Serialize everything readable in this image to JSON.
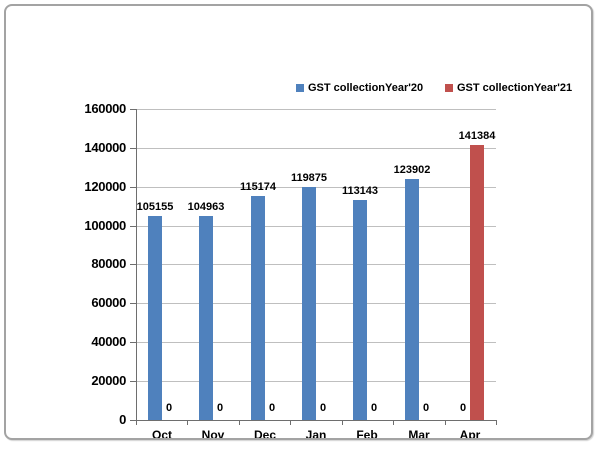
{
  "chart_data": {
    "type": "bar",
    "title": "",
    "xlabel": "",
    "ylabel": "",
    "categories": [
      "Oct",
      "Nov",
      "Dec",
      "Jan",
      "Feb",
      "Mar",
      "Apr"
    ],
    "series": [
      {
        "name": "GST collectionYear'20",
        "color": "#4f81bd",
        "values": [
          105155,
          104963,
          115174,
          119875,
          113143,
          123902,
          0
        ]
      },
      {
        "name": "GST collectionYear'21",
        "color": "#c0504d",
        "values": [
          0,
          0,
          0,
          0,
          0,
          0,
          141384
        ]
      }
    ],
    "ylim": [
      0,
      160000
    ],
    "yticks": [
      0,
      20000,
      40000,
      60000,
      80000,
      100000,
      120000,
      140000,
      160000
    ],
    "grid": true,
    "legend_position": "top",
    "data_labels": true
  },
  "style": {
    "gridline_color": "#bfbfbf",
    "axis_color": "#6e6e6e",
    "label_color": "#000000",
    "frame_border_color": "#a3a3a3"
  }
}
